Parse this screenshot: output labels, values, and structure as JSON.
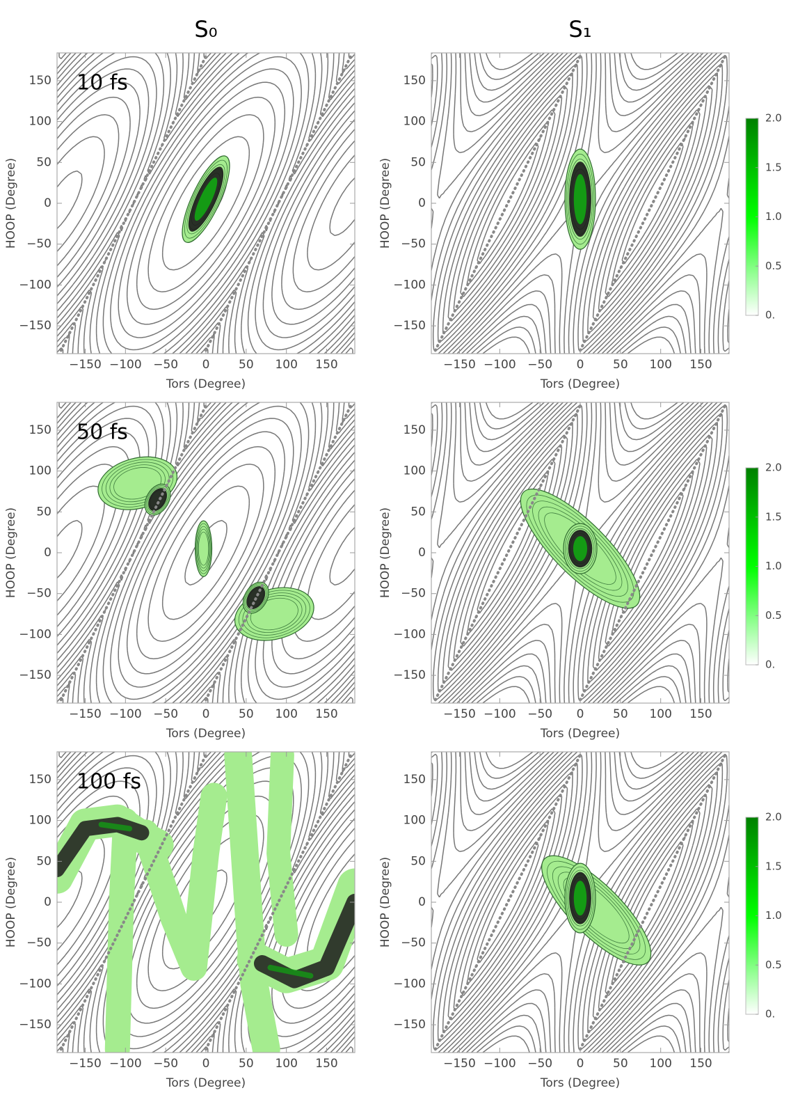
{
  "chart_data": [
    {
      "type": "contour",
      "title": "S₀",
      "annotation": "10 fs",
      "xlabel": "Tors (Degree)",
      "ylabel": "HOOP (Degree)",
      "xlim": [
        -185,
        185
      ],
      "ylim": [
        -184,
        184
      ],
      "xticks": [
        {
          "value": -150,
          "label": "−150"
        },
        {
          "value": -100,
          "label": "−100"
        },
        {
          "value": -50,
          "label": "−50"
        },
        0,
        50,
        100,
        150
      ],
      "yticks": [
        {
          "value": -150,
          "label": "−150"
        },
        {
          "value": -100,
          "label": "−100"
        },
        {
          "value": -50,
          "label": "−50"
        },
        0,
        50,
        100,
        150
      ]
    },
    {
      "type": "contour",
      "title": "S₁",
      "xlabel": "Tors (Degree)",
      "ylabel": "HOOP (Degree)",
      "xlim": [
        -185,
        185
      ],
      "ylim": [
        -184,
        184
      ],
      "xticks": [
        {
          "value": -150,
          "label": "−150"
        },
        {
          "value": -100,
          "label": "−100"
        },
        {
          "value": -50,
          "label": "−50"
        },
        0,
        50,
        100,
        150
      ],
      "yticks": [
        {
          "value": -150,
          "label": "−150"
        },
        {
          "value": -100,
          "label": "−100"
        },
        {
          "value": -50,
          "label": "−50"
        },
        0,
        50,
        100,
        150
      ],
      "colorbar": {
        "zlim": [
          0,
          2
        ],
        "ticks": [
          {
            "value": 0,
            "label": "0."
          },
          0.5,
          {
            "value": 1,
            "label": "1.0"
          },
          1.5,
          {
            "value": 2,
            "label": "2.0"
          }
        ],
        "colors": [
          "#ffffff",
          "#00ff00",
          "#008000"
        ]
      }
    },
    {
      "type": "contour",
      "annotation": "50 fs",
      "xlabel": "Tors (Degree)",
      "ylabel": "HOOP (Degree)",
      "xlim": [
        -185,
        185
      ],
      "ylim": [
        -184,
        184
      ],
      "xticks": [
        {
          "value": -150,
          "label": "−150"
        },
        {
          "value": -100,
          "label": "−100"
        },
        {
          "value": -50,
          "label": "−50"
        },
        0,
        50,
        100,
        150
      ],
      "yticks": [
        {
          "value": -150,
          "label": "−150"
        },
        {
          "value": -100,
          "label": "−100"
        },
        {
          "value": -50,
          "label": "−50"
        },
        0,
        50,
        100,
        150
      ]
    },
    {
      "type": "contour",
      "xlabel": "Tors (Degree)",
      "ylabel": "HOOP (Degree)",
      "xlim": [
        -185,
        185
      ],
      "ylim": [
        -184,
        184
      ],
      "xticks": [
        {
          "value": -150,
          "label": "−150"
        },
        {
          "value": -100,
          "label": "−100"
        },
        {
          "value": -50,
          "label": "−50"
        },
        0,
        50,
        100,
        150
      ],
      "yticks": [
        {
          "value": -150,
          "label": "−150"
        },
        {
          "value": -100,
          "label": "−100"
        },
        {
          "value": -50,
          "label": "−50"
        },
        0,
        50,
        100,
        150
      ],
      "colorbar": {
        "zlim": [
          0,
          2
        ],
        "ticks": [
          {
            "value": 0,
            "label": "0."
          },
          0.5,
          {
            "value": 1,
            "label": "1.0"
          },
          1.5,
          {
            "value": 2,
            "label": "2.0"
          }
        ],
        "colors": [
          "#ffffff",
          "#00ff00",
          "#008000"
        ]
      }
    },
    {
      "type": "contour",
      "annotation": "100 fs",
      "xlabel": "Tors (Degree)",
      "ylabel": "HOOP (Degree)",
      "xlim": [
        -185,
        185
      ],
      "ylim": [
        -184,
        184
      ],
      "xticks": [
        {
          "value": -150,
          "label": "−150"
        },
        {
          "value": -100,
          "label": "−100"
        },
        {
          "value": -50,
          "label": "−50"
        },
        0,
        50,
        100,
        150
      ],
      "yticks": [
        {
          "value": -150,
          "label": "−150"
        },
        {
          "value": -100,
          "label": "−100"
        },
        {
          "value": -50,
          "label": "−50"
        },
        0,
        50,
        100,
        150
      ]
    },
    {
      "type": "contour",
      "xlabel": "Tors (Degree)",
      "ylabel": "HOOP (Degree)",
      "xlim": [
        -185,
        185
      ],
      "ylim": [
        -184,
        184
      ],
      "xticks": [
        {
          "value": -150,
          "label": "−150"
        },
        {
          "value": -100,
          "label": "−100"
        },
        {
          "value": -50,
          "label": "−50"
        },
        0,
        50,
        100,
        150
      ],
      "yticks": [
        {
          "value": -150,
          "label": "−150"
        },
        {
          "value": -100,
          "label": "−100"
        },
        {
          "value": -50,
          "label": "−50"
        },
        0,
        50,
        100,
        150
      ],
      "colorbar": {
        "zlim": [
          0,
          2
        ],
        "ticks": [
          {
            "value": 0,
            "label": "0."
          },
          0.5,
          {
            "value": 1,
            "label": "1.0"
          },
          1.5,
          {
            "value": 2,
            "label": "2.0"
          }
        ],
        "colors": [
          "#ffffff",
          "#00ff00",
          "#008000"
        ]
      }
    }
  ]
}
